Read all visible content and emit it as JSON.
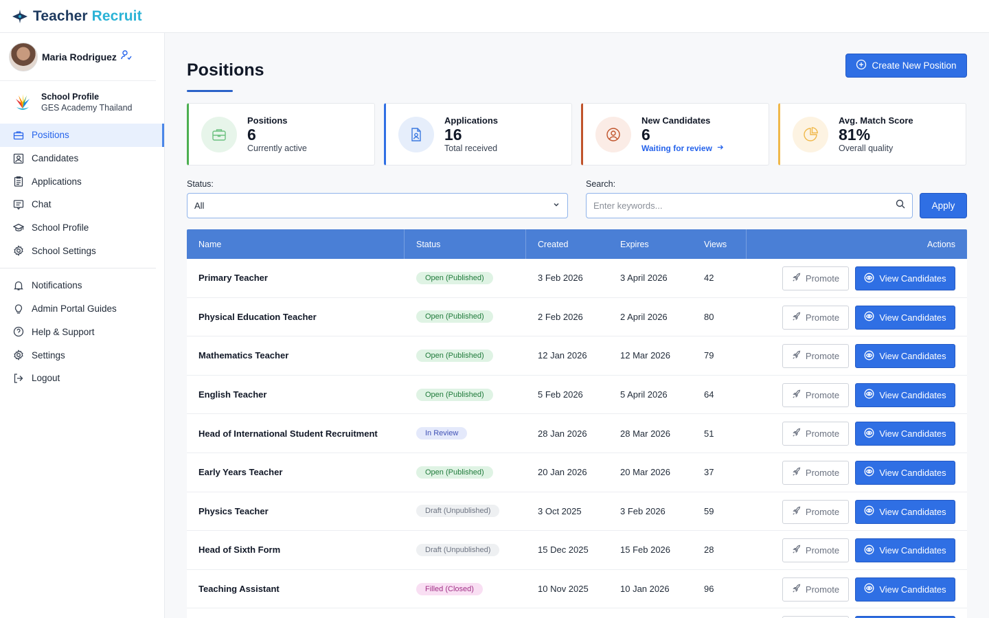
{
  "brand": {
    "part1": "Teacher",
    "part2": "Recruit"
  },
  "user": {
    "name": "Maria Rodriguez"
  },
  "school": {
    "title": "School Profile",
    "name": "GES Academy Thailand"
  },
  "nav_main": [
    {
      "label": "Positions",
      "icon": "briefcase-icon",
      "active": true
    },
    {
      "label": "Candidates",
      "icon": "person-card-icon"
    },
    {
      "label": "Applications",
      "icon": "clipboard-icon"
    },
    {
      "label": "Chat",
      "icon": "chat-icon"
    },
    {
      "label": "School Profile",
      "icon": "graduation-cap-icon"
    },
    {
      "label": "School Settings",
      "icon": "gear-icon"
    }
  ],
  "nav_secondary": [
    {
      "label": "Notifications",
      "icon": "bell-icon"
    },
    {
      "label": "Admin Portal Guides",
      "icon": "lightbulb-icon"
    },
    {
      "label": "Help & Support",
      "icon": "lifebuoy-icon"
    },
    {
      "label": "Settings",
      "icon": "gear-icon"
    },
    {
      "label": "Logout",
      "icon": "logout-icon"
    }
  ],
  "page": {
    "title": "Positions",
    "create_label": "Create New Position"
  },
  "stats": [
    {
      "title": "Positions",
      "value": "6",
      "sub": "Currently active",
      "accent": "#4caf50",
      "icon": "briefcase-icon"
    },
    {
      "title": "Applications",
      "value": "16",
      "sub": "Total received",
      "accent": "#2f6fe4",
      "icon": "document-person-icon"
    },
    {
      "title": "New Candidates",
      "value": "6",
      "link": "Waiting for review",
      "accent": "#c0532a",
      "icon": "user-circle-icon"
    },
    {
      "title": "Avg. Match Score",
      "value": "81%",
      "sub": "Overall quality",
      "accent": "#f0b84a",
      "icon": "pie-chart-icon"
    }
  ],
  "filters": {
    "status_label": "Status:",
    "status_value": "All",
    "search_label": "Search:",
    "search_placeholder": "Enter keywords...",
    "apply_label": "Apply"
  },
  "table": {
    "headers": {
      "name": "Name",
      "status": "Status",
      "created": "Created",
      "expires": "Expires",
      "views": "Views",
      "actions": "Actions"
    },
    "promote_label": "Promote",
    "view_label": "View Candidates",
    "rows": [
      {
        "name": "Primary Teacher",
        "status": "Open (Published)",
        "kind": "open",
        "created": "3 Feb 2026",
        "expires": "3 April 2026",
        "views": "42"
      },
      {
        "name": "Physical Education Teacher",
        "status": "Open (Published)",
        "kind": "open",
        "created": "2 Feb 2026",
        "expires": "2 April 2026",
        "views": "80"
      },
      {
        "name": "Mathematics Teacher",
        "status": "Open (Published)",
        "kind": "open",
        "created": "12 Jan 2026",
        "expires": "12 Mar 2026",
        "views": "79"
      },
      {
        "name": "English Teacher",
        "status": "Open (Published)",
        "kind": "open",
        "created": "5 Feb 2026",
        "expires": "5 April 2026",
        "views": "64"
      },
      {
        "name": "Head of International Student Recruitment",
        "status": "In Review",
        "kind": "review",
        "created": "28 Jan 2026",
        "expires": "28 Mar 2026",
        "views": "51"
      },
      {
        "name": "Early Years Teacher",
        "status": "Open (Published)",
        "kind": "open",
        "created": "20 Jan 2026",
        "expires": "20 Mar 2026",
        "views": "37"
      },
      {
        "name": "Physics Teacher",
        "status": "Draft (Unpublished)",
        "kind": "draft",
        "created": "3 Oct 2025",
        "expires": "3 Feb 2026",
        "views": "59"
      },
      {
        "name": "Head of Sixth Form",
        "status": "Draft (Unpublished)",
        "kind": "draft",
        "created": "15 Dec 2025",
        "expires": "15 Feb 2026",
        "views": "28"
      },
      {
        "name": "Teaching Assistant",
        "status": "Filled (Closed)",
        "kind": "filled",
        "created": "10 Nov 2025",
        "expires": "10 Jan 2026",
        "views": "96"
      }
    ]
  }
}
